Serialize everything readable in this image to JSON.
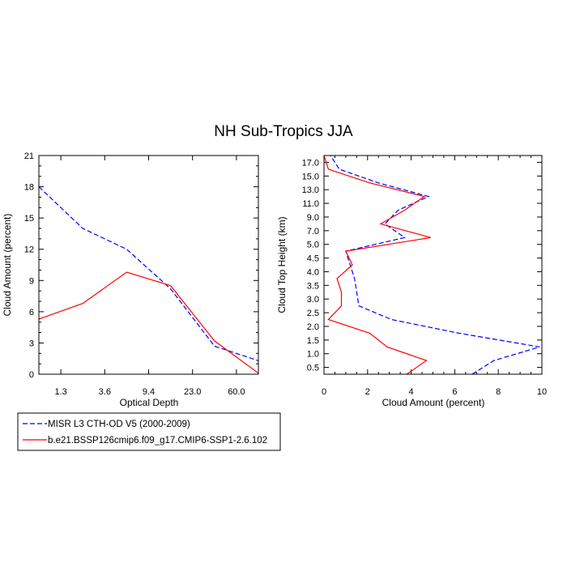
{
  "figure": {
    "title": "NH Sub-Tropics JJA"
  },
  "legend": {
    "placement": "bottom-left",
    "entries": [
      {
        "label": "MISR L3 CTH-OD V5 (2000-2009)",
        "color": "#0000ff",
        "dash": "dashed"
      },
      {
        "label": "b.e21.BSSP126cmip6.f09_g17.CMIP6-SSP1-2.6.102",
        "color": "#ff0000",
        "dash": "solid"
      }
    ]
  },
  "chart_data": [
    {
      "type": "line",
      "xlabel": "Optical Depth",
      "ylabel": "Cloud Amount (percent)",
      "x_tick_labels": [
        "1.3",
        "3.6",
        "9.4",
        "23.0",
        "60.0"
      ],
      "x": [
        0,
        1,
        2,
        3,
        4,
        5
      ],
      "ylim": [
        0,
        21
      ],
      "yticks": [
        0,
        3,
        6,
        9,
        12,
        15,
        18,
        21
      ],
      "series": [
        {
          "color": "#0000ff",
          "dash": "dashed",
          "values": [
            18.0,
            14.0,
            12.0,
            8.2,
            2.7,
            1.3
          ]
        },
        {
          "color": "#ff0000",
          "dash": "solid",
          "values": [
            5.3,
            6.8,
            9.8,
            8.5,
            3.2,
            0.1
          ]
        }
      ]
    },
    {
      "type": "line",
      "xlabel": "Cloud Amount (percent)",
      "ylabel": "Cloud Top Height (km)",
      "xlim": [
        0,
        10
      ],
      "xticks": [
        0,
        2,
        4,
        6,
        8,
        10
      ],
      "y_tick_labels": [
        "0.5",
        "1.0",
        "1.5",
        "2.0",
        "2.5",
        "3.0",
        "3.5",
        "4.0",
        "4.5",
        "5.0",
        "7.0",
        "9.0",
        "11.0",
        "13.0",
        "15.0",
        "17.0"
      ],
      "series": [
        {
          "color": "#0000ff",
          "dash": "dashed",
          "values": [
            6.8,
            7.8,
            9.9,
            6.2,
            3.1,
            1.6,
            1.5,
            1.4,
            1.2,
            1.0,
            3.7,
            2.8,
            3.4,
            4.8,
            2.5,
            0.7,
            0.3
          ]
        },
        {
          "color": "#ff0000",
          "dash": "solid",
          "values": [
            3.8,
            4.7,
            2.9,
            2.1,
            0.2,
            0.8,
            0.8,
            0.6,
            1.3,
            1.0,
            4.9,
            2.6,
            3.7,
            4.6,
            2.1,
            0.2,
            0.0
          ]
        }
      ]
    }
  ]
}
